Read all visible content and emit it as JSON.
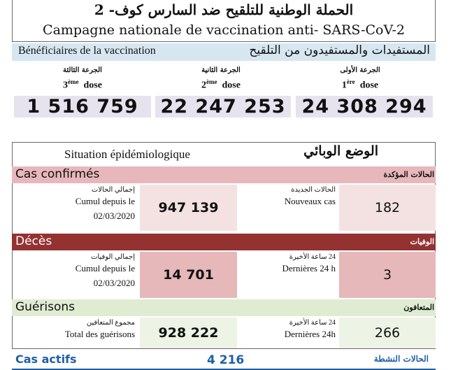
{
  "header": {
    "title_ar": "الحملة الوطنية للتلقيح ضد السارس كوف- 2",
    "title_fr": "Campagne nationale de vaccination anti- SARS-CoV-2"
  },
  "beneficiaries": {
    "label_fr": "Bénéficiaires de la vaccination",
    "label_ar": "المستفيدات والمستفيدون من التلقيح",
    "doses": [
      {
        "label_ar": "الجرعة الثالثة",
        "ordinal": "3",
        "suffix": "ème",
        "word": "dose",
        "value": "1 516 759"
      },
      {
        "label_ar": "الجرعة الثانية",
        "ordinal": "2",
        "suffix": "ème",
        "word": "dose",
        "value": "22 247 253"
      },
      {
        "label_ar": "الجرعة الأولى",
        "ordinal": "1",
        "suffix": "ère",
        "word": "dose",
        "value": "24 308 294"
      }
    ]
  },
  "situation": {
    "title_fr": "Situation épidémiologique",
    "title_ar": "الوضع الوبائي",
    "sections": [
      {
        "label_fr": "Cas confirmés",
        "label_ar": "الحالات المؤكدة",
        "cumul_ar": "إجمالي الحالات",
        "cumul_fr1": "Cumul depuis le",
        "cumul_fr2": "02/03/2020",
        "cumul_value": "947 139",
        "new_ar": "الحالات الجديدة",
        "new_fr": "Nouveaux cas",
        "new_value": "182"
      },
      {
        "label_fr": "Décès",
        "label_ar": "الوفيات",
        "cumul_ar": "إجمالي الوفيات",
        "cumul_fr1": "Cumul depuis le",
        "cumul_fr2": "02/03/2020",
        "cumul_value": "14 701",
        "new_ar": "24 ساعة الأخيرة",
        "new_fr": "Dernières 24 h",
        "new_value": "3"
      },
      {
        "label_fr": "Guérisons",
        "label_ar": "المتعافون",
        "cumul_ar": "مجموع المتعافين",
        "cumul_fr1": "Total des guérisons",
        "cumul_value": "928 222",
        "new_ar": "24 ساعة الأخيرة",
        "new_fr": "Dernières 24h",
        "new_value": "266"
      }
    ],
    "active": {
      "label_fr": "Cas actifs",
      "value": "4 216",
      "label_ar": "الحالات النشطة"
    }
  },
  "colors": {
    "benef_band": "#d6e7f1",
    "dose_bg": "#e6e3ef",
    "confirmed_band": "#e8b7bb",
    "confirmed_cell": "#f4e2e3",
    "deaths_band": "#943232",
    "deaths_cell": "#e6b8b9",
    "recovered_band": "#dfecd2",
    "recovered_cell": "#edf3e5",
    "active_text": "#1f5fa6"
  }
}
